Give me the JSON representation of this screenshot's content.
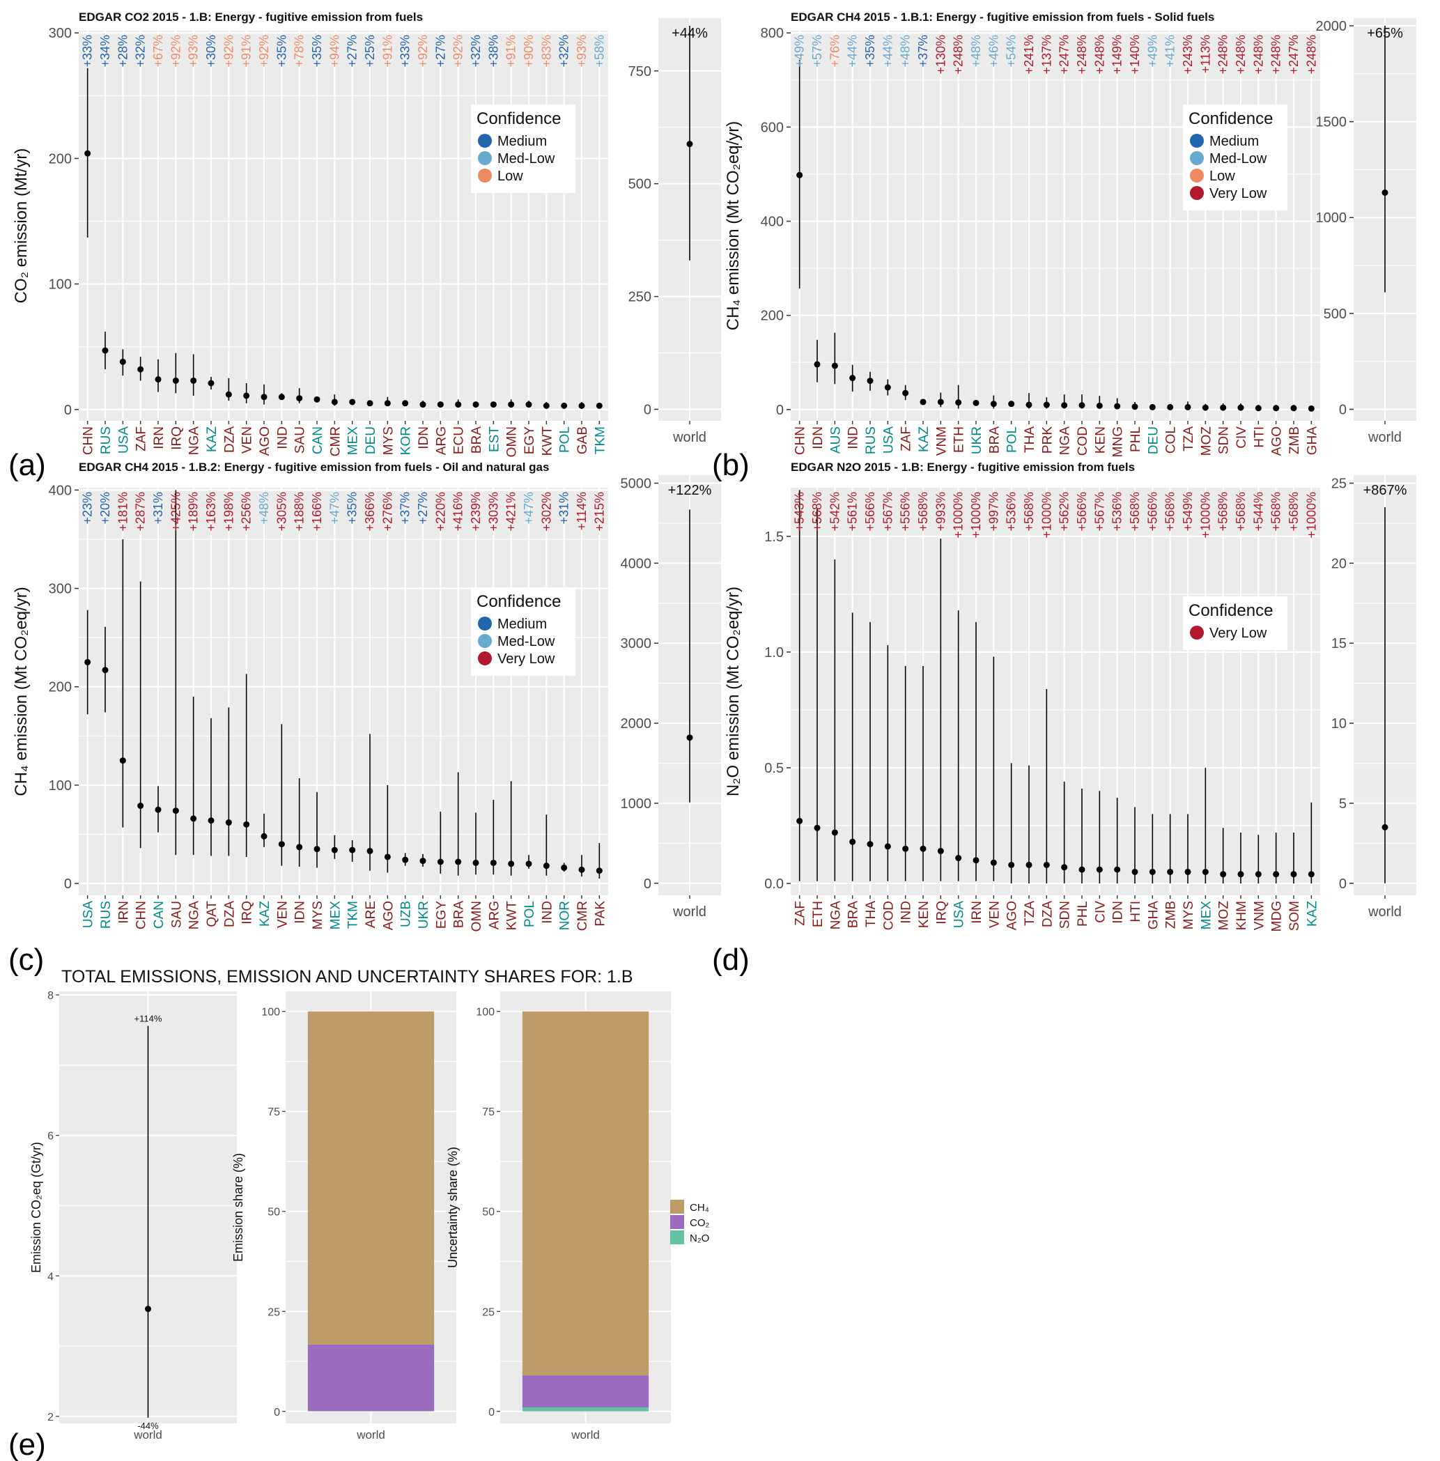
{
  "colors": {
    "Medium": "#2166ac",
    "Med-Low": "#67a9cf",
    "Low": "#ef8a62",
    "Very Low": "#b2182b",
    "panel": "#ebebeb",
    "CH4": "#bf9b6a",
    "CO2": "#9b6bbf",
    "N2O": "#66c2a5",
    "country_teal": "#008b8b",
    "country_red": "#8b1a1a"
  },
  "panel_tags": [
    "(a)",
    "(b)",
    "(c)",
    "(d)",
    "(e)"
  ],
  "legend_title": "Confidence",
  "world_label": "world",
  "chart_data": [
    {
      "type": "scatter",
      "title": "EDGAR CO2 2015 - 1.B: Energy - fugitive emission from fuels",
      "ylabel": "CO₂ emission (Mt/yr)",
      "ylim": [
        0,
        300
      ],
      "yticks": [
        0,
        100,
        200,
        300
      ],
      "legend": [
        "Medium",
        "Med-Low",
        "Low"
      ],
      "categories": [
        "CHN",
        "RUS",
        "USA",
        "ZAF",
        "IRN",
        "IRQ",
        "NGA",
        "KAZ",
        "DZA",
        "VEN",
        "AGO",
        "IND",
        "SAU",
        "CAN",
        "CMR",
        "MEX",
        "DEU",
        "MYS",
        "KOR",
        "IDN",
        "ARG",
        "ECU",
        "BRA",
        "EST",
        "OMN",
        "EGY",
        "KWT",
        "POL",
        "GAB",
        "TKM"
      ],
      "country_colors": [
        "red",
        "teal",
        "teal",
        "red",
        "red",
        "red",
        "red",
        "teal",
        "red",
        "red",
        "red",
        "red",
        "red",
        "teal",
        "red",
        "teal",
        "teal",
        "red",
        "teal",
        "red",
        "red",
        "red",
        "red",
        "teal",
        "red",
        "red",
        "red",
        "teal",
        "red",
        "teal"
      ],
      "values": [
        204,
        47,
        38,
        32,
        24,
        23,
        23,
        21,
        12,
        11,
        10,
        10,
        9,
        8,
        6,
        6,
        5,
        5,
        5,
        4,
        4,
        4,
        4,
        4,
        4,
        4,
        3,
        3,
        3,
        3
      ],
      "low": [
        137,
        32,
        27,
        23,
        14,
        13,
        11,
        16,
        7,
        5,
        4,
        8,
        5,
        7,
        3,
        5,
        4,
        3,
        4,
        3,
        3,
        2,
        3,
        3,
        2,
        2,
        1,
        2,
        1,
        1
      ],
      "high": [
        272,
        62,
        48,
        42,
        40,
        45,
        44,
        26,
        25,
        21,
        20,
        13,
        17,
        10,
        12,
        8,
        7,
        10,
        7,
        7,
        5,
        8,
        6,
        6,
        8,
        7,
        6,
        5,
        6,
        5
      ],
      "uncertainty": [
        "+33%",
        "+34%",
        "+28%",
        "+32%",
        "+67%",
        "+92%",
        "+93%",
        "+30%",
        "+92%",
        "+91%",
        "+92%",
        "+35%",
        "+78%",
        "+35%",
        "+94%",
        "+27%",
        "+25%",
        "+91%",
        "+33%",
        "+92%",
        "+27%",
        "+92%",
        "+32%",
        "+38%",
        "+91%",
        "+90%",
        "+83%",
        "+32%",
        "+93%",
        "+58%"
      ],
      "confidence": [
        "Medium",
        "Medium",
        "Medium",
        "Medium",
        "Low",
        "Low",
        "Low",
        "Medium",
        "Low",
        "Low",
        "Low",
        "Medium",
        "Low",
        "Medium",
        "Low",
        "Medium",
        "Medium",
        "Low",
        "Medium",
        "Low",
        "Medium",
        "Low",
        "Medium",
        "Medium",
        "Low",
        "Low",
        "Low",
        "Medium",
        "Low",
        "Med-Low"
      ],
      "world": {
        "value": 588,
        "low": 330,
        "high": 850,
        "ylim": [
          0,
          850
        ],
        "yticks": [
          0,
          250,
          500,
          750
        ],
        "label": "+44%"
      }
    },
    {
      "type": "scatter",
      "title": "EDGAR CH4 2015 - 1.B.1: Energy - fugitive emission from fuels - Solid fuels",
      "ylabel": "CH₄ emission (Mt CO₂eq/yr)",
      "ylim": [
        0,
        800
      ],
      "yticks": [
        0,
        200,
        400,
        600,
        800
      ],
      "legend": [
        "Medium",
        "Med-Low",
        "Low",
        "Very Low"
      ],
      "categories": [
        "CHN",
        "IDN",
        "AUS",
        "IND",
        "RUS",
        "USA",
        "ZAF",
        "KAZ",
        "VNM",
        "ETH",
        "UKR",
        "BRA",
        "POL",
        "THA",
        "PRK",
        "NGA",
        "COD",
        "KEN",
        "MNG",
        "PHL",
        "DEU",
        "COL",
        "TZA",
        "MOZ",
        "SDN",
        "CIV",
        "HTI",
        "AGO",
        "ZMB",
        "GHA"
      ],
      "country_colors": [
        "red",
        "red",
        "teal",
        "red",
        "teal",
        "teal",
        "red",
        "teal",
        "red",
        "red",
        "teal",
        "red",
        "teal",
        "red",
        "red",
        "red",
        "red",
        "red",
        "red",
        "red",
        "teal",
        "red",
        "red",
        "red",
        "red",
        "red",
        "red",
        "red",
        "red",
        "red"
      ],
      "values": [
        498,
        96,
        93,
        67,
        61,
        47,
        35,
        16,
        16,
        15,
        14,
        12,
        12,
        10,
        10,
        9,
        9,
        8,
        7,
        6,
        5,
        5,
        5,
        4,
        4,
        4,
        3,
        3,
        3,
        2
      ],
      "low": [
        257,
        58,
        54,
        38,
        40,
        30,
        20,
        12,
        5,
        2,
        9,
        2,
        9,
        2,
        2,
        2,
        2,
        2,
        2,
        1,
        4,
        3,
        1,
        1,
        1,
        1,
        1,
        1,
        1,
        1
      ],
      "high": [
        743,
        148,
        163,
        95,
        80,
        64,
        52,
        20,
        36,
        52,
        19,
        30,
        15,
        35,
        26,
        32,
        32,
        29,
        24,
        16,
        6,
        7,
        17,
        12,
        13,
        13,
        10,
        10,
        10,
        8
      ],
      "uncertainty": [
        "+49%",
        "+57%",
        "+76%",
        "+44%",
        "+35%",
        "+44%",
        "+48%",
        "+37%",
        "+130%",
        "+248%",
        "+48%",
        "+46%",
        "+54%",
        "+241%",
        "+137%",
        "+247%",
        "+248%",
        "+248%",
        "+149%",
        "+140%",
        "+49%",
        "+41%",
        "+243%",
        "+113%",
        "+248%",
        "+248%",
        "+248%",
        "+248%",
        "+247%",
        "+248%"
      ],
      "confidence": [
        "Med-Low",
        "Med-Low",
        "Low",
        "Med-Low",
        "Medium",
        "Med-Low",
        "Med-Low",
        "Medium",
        "Very Low",
        "Very Low",
        "Med-Low",
        "Med-Low",
        "Med-Low",
        "Very Low",
        "Very Low",
        "Very Low",
        "Very Low",
        "Very Low",
        "Very Low",
        "Very Low",
        "Med-Low",
        "Med-Low",
        "Very Low",
        "Very Low",
        "Very Low",
        "Very Low",
        "Very Low",
        "Very Low",
        "Very Low",
        "Very Low"
      ],
      "world": {
        "value": 1130,
        "low": 610,
        "high": 2000,
        "ylim": [
          0,
          2000
        ],
        "yticks": [
          0,
          500,
          1000,
          1500,
          2000
        ],
        "label": "+65%"
      }
    },
    {
      "type": "scatter",
      "title": "EDGAR CH4 2015 - 1.B.2: Energy - fugitive emission from fuels - Oil and natural gas",
      "ylabel": "CH₄ emission (Mt CO₂eq/yr)",
      "ylim": [
        0,
        400
      ],
      "yticks": [
        0,
        100,
        200,
        300,
        400
      ],
      "legend": [
        "Medium",
        "Med-Low",
        "Very Low"
      ],
      "categories": [
        "USA",
        "RUS",
        "IRN",
        "CHN",
        "CAN",
        "SAU",
        "NGA",
        "QAT",
        "DZA",
        "IRQ",
        "KAZ",
        "VEN",
        "IDN",
        "MYS",
        "MEX",
        "TKM",
        "ARE",
        "AGO",
        "UZB",
        "UKR",
        "EGY",
        "BRA",
        "OMN",
        "ARG",
        "KWT",
        "POL",
        "IND",
        "NOR",
        "CMR",
        "PAK"
      ],
      "country_colors": [
        "teal",
        "teal",
        "red",
        "red",
        "teal",
        "red",
        "red",
        "red",
        "red",
        "red",
        "teal",
        "red",
        "red",
        "red",
        "teal",
        "teal",
        "red",
        "red",
        "teal",
        "teal",
        "red",
        "red",
        "red",
        "red",
        "red",
        "teal",
        "red",
        "teal",
        "red",
        "red"
      ],
      "values": [
        225,
        217,
        125,
        79,
        75,
        74,
        66,
        64,
        62,
        60,
        48,
        40,
        37,
        35,
        34,
        34,
        33,
        27,
        24,
        23,
        22,
        22,
        21,
        21,
        20,
        20,
        18,
        16,
        14,
        13
      ],
      "low": [
        172,
        174,
        57,
        36,
        52,
        29,
        29,
        28,
        28,
        27,
        37,
        18,
        17,
        16,
        25,
        22,
        13,
        11,
        18,
        17,
        10,
        8,
        9,
        9,
        8,
        15,
        8,
        12,
        7,
        5
      ],
      "high": [
        278,
        261,
        350,
        307,
        99,
        400,
        190,
        168,
        179,
        213,
        71,
        162,
        107,
        93,
        49,
        44,
        152,
        100,
        31,
        30,
        73,
        113,
        72,
        85,
        104,
        29,
        70,
        21,
        29,
        41
      ],
      "uncertainty": [
        "+23%",
        "+20%",
        "+181%",
        "+287%",
        "+31%",
        "+425%",
        "+189%",
        "+163%",
        "+198%",
        "+256%",
        "+48%",
        "+305%",
        "+188%",
        "+166%",
        "+47%",
        "+35%",
        "+366%",
        "+276%",
        "+37%",
        "+27%",
        "+220%",
        "+416%",
        "+239%",
        "+303%",
        "+421%",
        "+47%",
        "+302%",
        "+31%",
        "+114%",
        "+215%"
      ],
      "confidence": [
        "Medium",
        "Medium",
        "Very Low",
        "Very Low",
        "Medium",
        "Very Low",
        "Very Low",
        "Very Low",
        "Very Low",
        "Very Low",
        "Med-Low",
        "Very Low",
        "Very Low",
        "Very Low",
        "Med-Low",
        "Medium",
        "Very Low",
        "Very Low",
        "Medium",
        "Medium",
        "Very Low",
        "Very Low",
        "Very Low",
        "Very Low",
        "Very Low",
        "Med-Low",
        "Very Low",
        "Medium",
        "Very Low",
        "Very Low"
      ],
      "world": {
        "value": 1820,
        "low": 1010,
        "high": 4670,
        "ylim": [
          0,
          5000
        ],
        "yticks": [
          0,
          1000,
          2000,
          3000,
          4000,
          5000
        ],
        "label": "+122%"
      }
    },
    {
      "type": "scatter",
      "title": "EDGAR N2O 2015 - 1.B: Energy - fugitive emission from fuels",
      "ylabel": "N₂O emission (Mt CO₂eq/yr)",
      "ylim": [
        0,
        1.7
      ],
      "yticks": [
        0.0,
        0.5,
        1.0,
        1.5
      ],
      "ytick_labels": [
        "0.0",
        "0.5",
        "1.0",
        "1.5"
      ],
      "legend": [
        "Very Low"
      ],
      "categories": [
        "ZAF",
        "ETH",
        "NGA",
        "BRA",
        "THA",
        "COD",
        "IND",
        "KEN",
        "IRQ",
        "USA",
        "IRN",
        "VEN",
        "AGO",
        "TZA",
        "DZA",
        "SDN",
        "PHL",
        "CIV",
        "IDN",
        "HTI",
        "GHA",
        "ZMB",
        "MYS",
        "MEX",
        "MOZ",
        "KHM",
        "VNM",
        "MDG",
        "SOM",
        "KAZ"
      ],
      "country_colors": [
        "red",
        "red",
        "red",
        "red",
        "red",
        "red",
        "red",
        "red",
        "red",
        "teal",
        "red",
        "red",
        "red",
        "red",
        "red",
        "red",
        "red",
        "red",
        "red",
        "red",
        "red",
        "red",
        "red",
        "teal",
        "red",
        "red",
        "red",
        "red",
        "red",
        "teal"
      ],
      "values": [
        0.27,
        0.24,
        0.22,
        0.18,
        0.17,
        0.16,
        0.15,
        0.15,
        0.14,
        0.11,
        0.1,
        0.09,
        0.08,
        0.08,
        0.08,
        0.07,
        0.06,
        0.06,
        0.06,
        0.05,
        0.05,
        0.05,
        0.05,
        0.05,
        0.04,
        0.04,
        0.04,
        0.04,
        0.04,
        0.04
      ],
      "low": [
        0.01,
        0.01,
        0.01,
        0.01,
        0.01,
        0.01,
        0.01,
        0.01,
        0.01,
        0.01,
        0.01,
        0.01,
        0.0,
        0.0,
        0.0,
        0.0,
        0.0,
        0.0,
        0.0,
        0.0,
        0.0,
        0.0,
        0.0,
        0.0,
        0.0,
        0.0,
        0.0,
        0.0,
        0.0,
        0.0
      ],
      "high": [
        1.7,
        1.62,
        1.4,
        1.17,
        1.13,
        1.03,
        0.94,
        0.94,
        1.49,
        1.18,
        1.13,
        0.98,
        0.52,
        0.51,
        0.84,
        0.44,
        0.41,
        0.4,
        0.37,
        0.33,
        0.3,
        0.3,
        0.3,
        0.5,
        0.24,
        0.22,
        0.21,
        0.22,
        0.22,
        0.35
      ],
      "uncertainty": [
        "+543%",
        "+568%",
        "+542%",
        "+561%",
        "+566%",
        "+567%",
        "+556%",
        "+568%",
        "+993%",
        "+1000%",
        "+1000%",
        "+997%",
        "+536%",
        "+568%",
        "+1000%",
        "+562%",
        "+566%",
        "+567%",
        "+536%",
        "+568%",
        "+566%",
        "+568%",
        "+549%",
        "+1000%",
        "+568%",
        "+568%",
        "+544%",
        "+568%",
        "+568%",
        "+1000%"
      ],
      "confidence": [
        "Very Low",
        "Very Low",
        "Very Low",
        "Very Low",
        "Very Low",
        "Very Low",
        "Very Low",
        "Very Low",
        "Very Low",
        "Very Low",
        "Very Low",
        "Very Low",
        "Very Low",
        "Very Low",
        "Very Low",
        "Very Low",
        "Very Low",
        "Very Low",
        "Very Low",
        "Very Low",
        "Very Low",
        "Very Low",
        "Very Low",
        "Very Low",
        "Very Low",
        "Very Low",
        "Very Low",
        "Very Low",
        "Very Low",
        "Very Low"
      ],
      "world": {
        "value": 3.5,
        "low": 0,
        "high": 23.5,
        "ylim": [
          0,
          25
        ],
        "yticks": [
          0,
          5,
          10,
          15,
          20,
          25
        ],
        "label": "+867%"
      }
    },
    {
      "type": "bar",
      "title": "TOTAL EMISSIONS, EMISSION AND UNCERTAINTY SHARES FOR: 1.B",
      "total": {
        "ylabel": "Emission CO₂eq (Gt/yr)",
        "ylim": [
          1.9,
          8
        ],
        "yticks": [
          2,
          4,
          6,
          8
        ],
        "value": 3.53,
        "low": 1.98,
        "high": 7.56,
        "upper_label": "+114%",
        "lower_label": "-44%"
      },
      "emission_share": {
        "ylabel": "Emission share (%)",
        "ylim": [
          0,
          100
        ],
        "yticks": [
          0,
          25,
          50,
          75,
          100
        ],
        "series": [
          {
            "name": "N2O",
            "value": 0.1
          },
          {
            "name": "CO2",
            "value": 16.6
          },
          {
            "name": "CH4",
            "value": 83.3
          }
        ]
      },
      "uncertainty_share": {
        "ylabel": "Uncertainty share (%)",
        "ylim": [
          0,
          100
        ],
        "yticks": [
          0,
          25,
          50,
          75,
          100
        ],
        "series": [
          {
            "name": "N2O",
            "value": 1
          },
          {
            "name": "CO2",
            "value": 8
          },
          {
            "name": "CH4",
            "value": 91
          }
        ]
      },
      "legend": [
        {
          "key": "CH4",
          "label": "CH₄"
        },
        {
          "key": "CO2",
          "label": "CO₂"
        },
        {
          "key": "N2O",
          "label": "N₂O"
        }
      ]
    }
  ]
}
